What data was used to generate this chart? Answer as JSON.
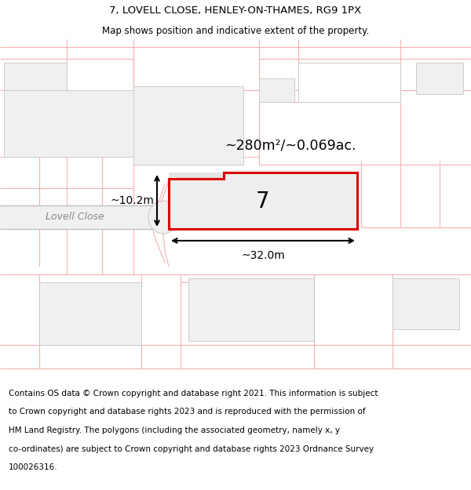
{
  "title_line1": "7, LOVELL CLOSE, HENLEY-ON-THAMES, RG9 1PX",
  "title_line2": "Map shows position and indicative extent of the property.",
  "area_label": "~280m²/~0.069ac.",
  "plot_number": "7",
  "width_label": "~32.0m",
  "height_label": "~10.2m",
  "street_label": "Lovell Close",
  "bg_color": "#ffffff",
  "map_bg": "#ffffff",
  "plot_fill": "#eeeeee",
  "plot_stroke": "#dd0000",
  "pink_line_color": "#f5b0b0",
  "footer_lines": [
    "Contains OS data © Crown copyright and database right 2021. This information is subject",
    "to Crown copyright and database rights 2023 and is reproduced with the permission of",
    "HM Land Registry. The polygons (including the associated geometry, namely x, y",
    "co-ordinates) are subject to Crown copyright and database rights 2023 Ordnance Survey",
    "100026316."
  ]
}
